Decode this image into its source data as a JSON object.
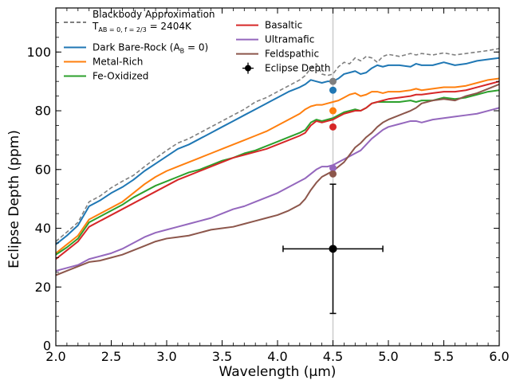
{
  "chart_data": {
    "type": "line",
    "xlabel": "Wavelength (μm)",
    "ylabel": "Eclipse Depth (ppm)",
    "xlim": [
      2.0,
      6.0
    ],
    "ylim": [
      0,
      115
    ],
    "xticks": [
      "2.0",
      "2.5",
      "3.0",
      "3.5",
      "4.0",
      "4.5",
      "5.0",
      "5.5",
      "6.0"
    ],
    "yticks": [
      "0",
      "20",
      "40",
      "60",
      "80",
      "100"
    ],
    "grid": false,
    "legend_placement": "top-left",
    "x": [
      2.0,
      2.1,
      2.2,
      2.3,
      2.4,
      2.5,
      2.6,
      2.7,
      2.8,
      2.9,
      3.0,
      3.1,
      3.2,
      3.3,
      3.4,
      3.5,
      3.6,
      3.7,
      3.8,
      3.9,
      4.0,
      4.1,
      4.2,
      4.25,
      4.3,
      4.35,
      4.4,
      4.45,
      4.5,
      4.55,
      4.6,
      4.65,
      4.7,
      4.75,
      4.8,
      4.85,
      4.9,
      4.95,
      5.0,
      5.1,
      5.2,
      5.25,
      5.3,
      5.4,
      5.5,
      5.6,
      5.7,
      5.8,
      5.9,
      6.0
    ],
    "series": [
      {
        "name": "Blackbody Approximation",
        "name_line2": "T",
        "name_sub": "AB = 0, f = 2/3",
        "name_rest": " = 2404K",
        "color": "#7f7f7f",
        "dash": "5,3",
        "values": [
          35.5,
          38.7,
          42.0,
          49.0,
          51.0,
          53.8,
          56.0,
          58.0,
          61.0,
          63.8,
          66.5,
          69.0,
          70.5,
          72.5,
          74.5,
          76.5,
          78.5,
          80.5,
          83.0,
          84.5,
          86.5,
          88.5,
          90.5,
          92.0,
          94.5,
          96.0,
          92.5,
          92.0,
          92.5,
          95.0,
          96.5,
          96.0,
          98.0,
          97.0,
          98.5,
          98.0,
          96.5,
          98.5,
          99.2,
          98.5,
          99.5,
          99.0,
          99.5,
          99.0,
          99.7,
          99.0,
          99.5,
          100.0,
          100.5,
          101.2
        ]
      },
      {
        "name": "Dark Bare-Rock (A",
        "name_sub": "B",
        "name_rest": " = 0)",
        "color": "#1f77b4",
        "dash": "",
        "values": [
          34.5,
          37.5,
          41.0,
          47.5,
          49.5,
          52.0,
          54.0,
          56.5,
          59.5,
          62.0,
          64.5,
          67.0,
          68.5,
          70.5,
          72.5,
          74.5,
          76.5,
          78.5,
          80.5,
          82.5,
          84.5,
          86.5,
          88.0,
          89.0,
          90.5,
          90.0,
          89.5,
          90.0,
          90.0,
          91.0,
          92.5,
          93.0,
          93.5,
          92.5,
          93.0,
          94.5,
          95.5,
          95.0,
          95.5,
          95.5,
          95.0,
          96.0,
          95.5,
          95.5,
          96.5,
          95.5,
          96.0,
          97.0,
          97.5,
          98.0
        ]
      },
      {
        "name": "Metal-Rich",
        "color": "#ff7f0e",
        "dash": "",
        "values": [
          31.5,
          34.5,
          37.5,
          43.0,
          45.0,
          47.0,
          49.0,
          52.0,
          55.0,
          57.5,
          59.5,
          61.0,
          62.5,
          64.0,
          65.5,
          67.0,
          68.5,
          70.0,
          71.5,
          73.0,
          75.0,
          77.0,
          79.0,
          80.5,
          81.5,
          82.0,
          82.0,
          82.5,
          83.0,
          83.5,
          84.5,
          85.5,
          86.0,
          85.0,
          85.5,
          86.5,
          86.5,
          86.0,
          86.5,
          86.5,
          87.0,
          87.5,
          87.0,
          87.5,
          88.0,
          88.0,
          88.5,
          89.5,
          90.5,
          91.0
        ]
      },
      {
        "name": "Fe-Oxidized",
        "color": "#2ca02c",
        "dash": "",
        "values": [
          31.0,
          33.5,
          36.5,
          42.0,
          44.0,
          46.0,
          48.0,
          50.5,
          52.5,
          54.5,
          56.0,
          57.5,
          59.0,
          60.0,
          61.5,
          63.0,
          64.0,
          65.5,
          66.5,
          68.0,
          69.5,
          71.0,
          72.5,
          73.5,
          76.0,
          77.0,
          76.5,
          77.0,
          77.5,
          78.5,
          79.5,
          80.0,
          80.5,
          80.0,
          81.0,
          82.5,
          83.0,
          83.0,
          83.0,
          83.0,
          83.5,
          83.0,
          83.5,
          83.5,
          84.5,
          84.0,
          84.5,
          85.5,
          86.5,
          87.0
        ]
      },
      {
        "name": "Basaltic",
        "color": "#d62728",
        "dash": "",
        "values": [
          29.5,
          32.5,
          35.5,
          40.5,
          42.5,
          44.5,
          46.5,
          48.5,
          50.5,
          52.5,
          54.5,
          56.5,
          58.0,
          59.5,
          61.0,
          62.5,
          64.0,
          65.0,
          66.0,
          67.0,
          68.5,
          70.0,
          71.5,
          72.5,
          75.0,
          76.5,
          76.0,
          76.5,
          77.0,
          78.0,
          79.0,
          79.5,
          80.0,
          80.0,
          81.0,
          82.5,
          83.0,
          83.5,
          84.0,
          84.5,
          85.0,
          85.5,
          85.5,
          86.0,
          86.5,
          86.5,
          87.0,
          88.0,
          89.0,
          90.0
        ]
      },
      {
        "name": "Ultramafic",
        "color": "#9467bd",
        "dash": "",
        "values": [
          25.5,
          26.5,
          27.5,
          29.5,
          30.5,
          31.5,
          33.0,
          35.0,
          37.0,
          38.5,
          39.5,
          40.5,
          41.5,
          42.5,
          43.5,
          45.0,
          46.5,
          47.5,
          49.0,
          50.5,
          52.0,
          54.0,
          56.0,
          57.0,
          58.5,
          60.0,
          61.0,
          61.0,
          61.5,
          62.5,
          63.5,
          64.5,
          65.5,
          66.5,
          68.5,
          70.5,
          72.0,
          73.5,
          74.5,
          75.5,
          76.5,
          76.5,
          76.0,
          77.0,
          77.5,
          78.0,
          78.5,
          79.0,
          80.0,
          81.0
        ]
      },
      {
        "name": "Feldspathic",
        "color": "#8c564b",
        "dash": "",
        "values": [
          24.0,
          25.5,
          27.0,
          28.5,
          29.0,
          30.0,
          31.0,
          32.5,
          34.0,
          35.5,
          36.5,
          37.0,
          37.5,
          38.5,
          39.5,
          40.0,
          40.5,
          41.5,
          42.5,
          43.5,
          44.5,
          46.0,
          48.0,
          50.0,
          53.0,
          55.5,
          57.5,
          58.5,
          59.5,
          61.0,
          62.5,
          65.0,
          67.5,
          69.0,
          71.0,
          72.5,
          74.5,
          76.0,
          77.0,
          78.5,
          80.0,
          81.0,
          82.5,
          83.5,
          84.0,
          83.5,
          85.0,
          86.0,
          87.5,
          89.0
        ]
      }
    ],
    "band_points": [
      {
        "x": 4.5,
        "y": 90,
        "color": "#7f7f7f"
      },
      {
        "x": 4.5,
        "y": 87,
        "color": "#1f77b4"
      },
      {
        "x": 4.5,
        "y": 80,
        "color": "#ff7f0e"
      },
      {
        "x": 4.5,
        "y": 74.5,
        "color": "#d62728"
      },
      {
        "x": 4.5,
        "y": 60.5,
        "color": "#9467bd"
      },
      {
        "x": 4.5,
        "y": 58.5,
        "color": "#8c564b"
      }
    ],
    "observation": {
      "name": "Eclipse Depth",
      "x": 4.5,
      "y": 33,
      "xerr": [
        4.05,
        4.95
      ],
      "yerr": [
        11,
        55
      ],
      "color": "#000000"
    },
    "legend_columns": [
      [
        "0",
        "1",
        "2",
        "3"
      ],
      [
        "4",
        "5",
        "6",
        "obs"
      ]
    ]
  }
}
